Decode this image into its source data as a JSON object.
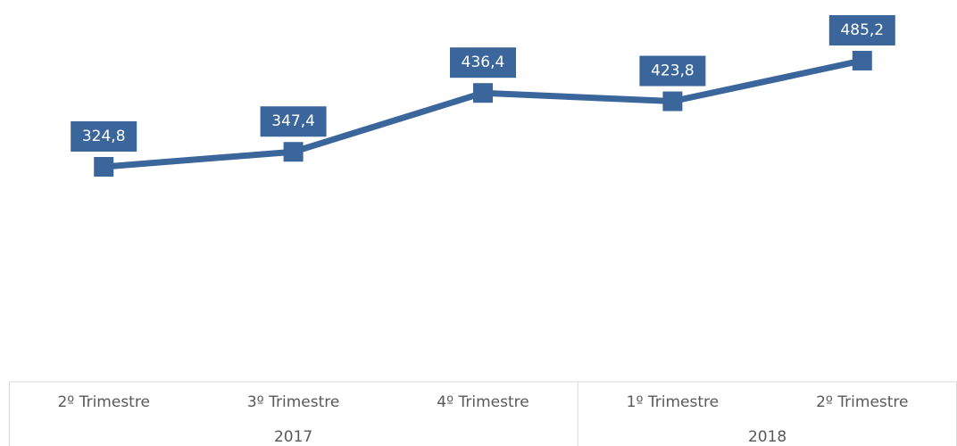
{
  "chart_data": {
    "type": "line",
    "groups": [
      {
        "name": "2017",
        "categories": [
          "2º Trimestre",
          "3º Trimestre",
          "4º Trimestre"
        ]
      },
      {
        "name": "2018",
        "categories": [
          "1º Trimestre",
          "2º Trimestre"
        ]
      }
    ],
    "series": [
      {
        "color": "#3b669c",
        "values": [
          324.8,
          347.4,
          436.4,
          423.8,
          485.2
        ],
        "value_labels": [
          "324,8",
          "347,4",
          "436,4",
          "423,8",
          "485,2"
        ]
      }
    ]
  }
}
